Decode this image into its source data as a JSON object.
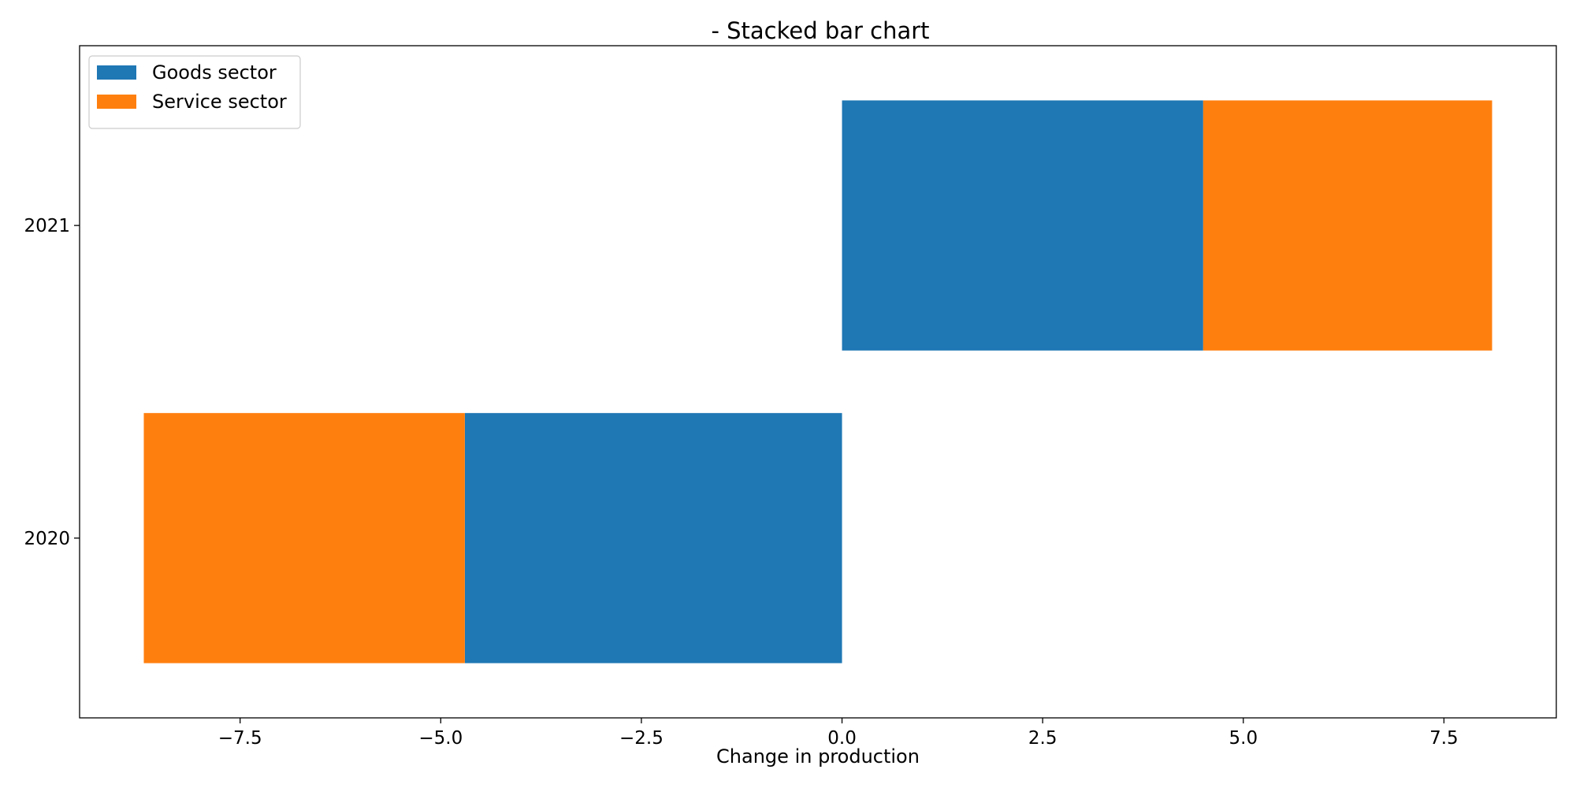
{
  "chart_data": {
    "type": "bar",
    "orientation": "horizontal",
    "stacked": true,
    "title": "- Stacked bar chart",
    "xlabel": "Change in production",
    "ylabel": "",
    "categories": [
      "2020",
      "2021"
    ],
    "series": [
      {
        "name": "Goods sector",
        "color": "#1f77b4",
        "values": [
          -4.7,
          4.5
        ]
      },
      {
        "name": "Service sector",
        "color": "#ff7f0e",
        "values": [
          -4.0,
          3.6
        ]
      }
    ],
    "xlim": [
      -9.5,
      8.9
    ],
    "xticks": [
      -7.5,
      -5.0,
      -2.5,
      0.0,
      2.5,
      5.0,
      7.5
    ],
    "xtick_labels": [
      "−7.5",
      "−5.0",
      "−2.5",
      "0.0",
      "2.5",
      "5.0",
      "7.5"
    ],
    "grid": false,
    "legend_position": "top-left"
  }
}
